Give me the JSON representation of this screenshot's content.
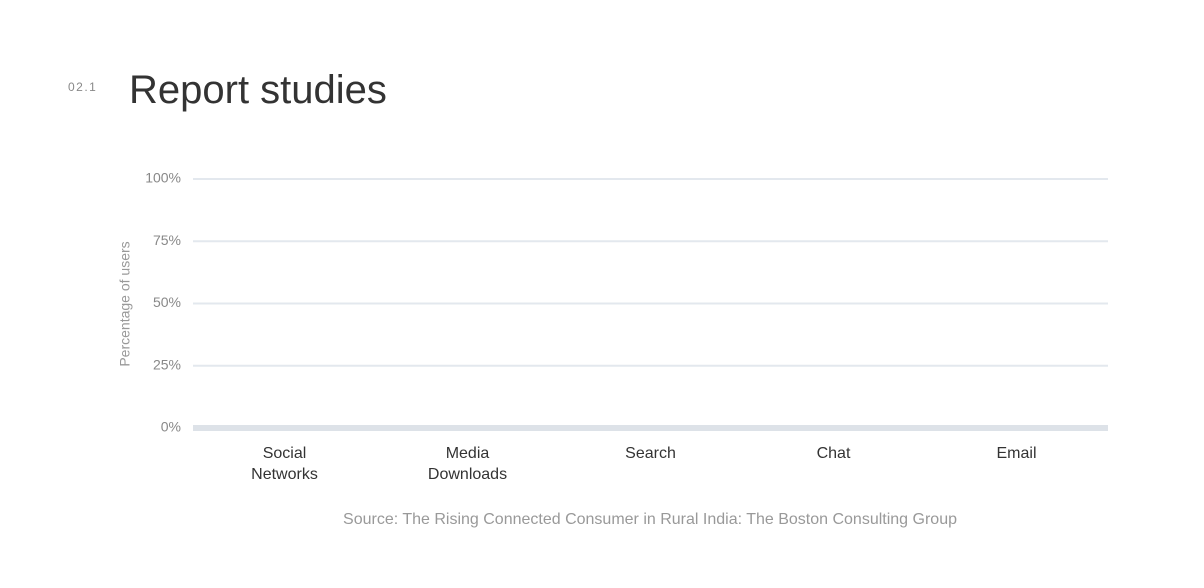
{
  "section": {
    "number": "02.1",
    "title": "Report studies"
  },
  "chart_data": {
    "type": "bar",
    "categories": [
      "Social Networks",
      "Media Downloads",
      "Search",
      "Chat",
      "Email"
    ],
    "ylabel": "Percentage of users",
    "ylim": [
      0,
      100
    ],
    "yticks": [
      {
        "value": 0,
        "label": "0%"
      },
      {
        "value": 25,
        "label": "25%"
      },
      {
        "value": 50,
        "label": "50%"
      },
      {
        "value": 75,
        "label": "75%"
      },
      {
        "value": 100,
        "label": "100%"
      }
    ],
    "grid": true,
    "note": "Source: The Rising Connected Consumer in Rural India: The Boston Consulting Group"
  }
}
